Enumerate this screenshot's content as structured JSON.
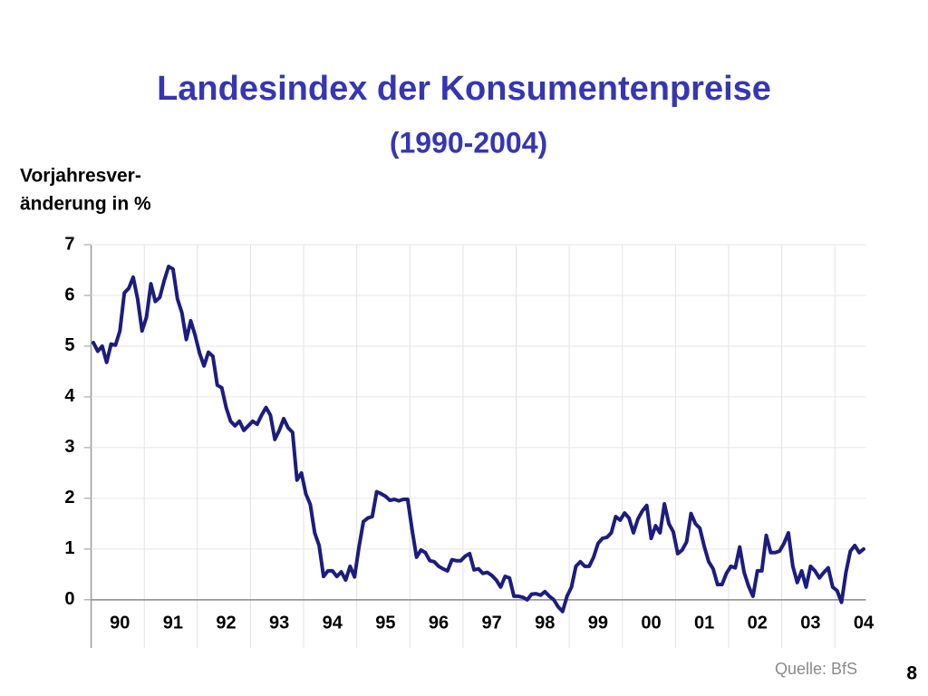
{
  "chart_data": {
    "type": "line",
    "title": "Landesindex der Konsumentenpreise",
    "subtitle": "(1990-2004)",
    "ylabel": [
      "Vorjahresver-",
      "änderung in %"
    ],
    "source": "Quelle: BfS",
    "page_number": "8",
    "categories": [
      null,
      null,
      null,
      null,
      null,
      null,
      "90",
      null,
      null,
      null,
      null,
      null,
      null,
      null,
      null,
      null,
      null,
      null,
      "91",
      null,
      null,
      null,
      null,
      null,
      null,
      null,
      null,
      null,
      null,
      null,
      "92",
      null,
      null,
      null,
      null,
      null,
      null,
      null,
      null,
      null,
      null,
      null,
      "93",
      null,
      null,
      null,
      null,
      null,
      null,
      null,
      null,
      null,
      null,
      null,
      "94",
      null,
      null,
      null,
      null,
      null,
      null,
      null,
      null,
      null,
      null,
      null,
      "95",
      null,
      null,
      null,
      null,
      null,
      null,
      null,
      null,
      null,
      null,
      null,
      "96",
      null,
      null,
      null,
      null,
      null,
      null,
      null,
      null,
      null,
      null,
      null,
      "97",
      null,
      null,
      null,
      null,
      null,
      null,
      null,
      null,
      null,
      null,
      null,
      "98",
      null,
      null,
      null,
      null,
      null,
      null,
      null,
      null,
      null,
      null,
      null,
      "99",
      null,
      null,
      null,
      null,
      null,
      null,
      null,
      null,
      null,
      null,
      null,
      "00",
      null,
      null,
      null,
      null,
      null,
      null,
      null,
      null,
      null,
      null,
      null,
      "01",
      null,
      null,
      null,
      null,
      null,
      null,
      null,
      null,
      null,
      null,
      null,
      "02",
      null,
      null,
      null,
      null,
      null,
      null,
      null,
      null,
      null,
      null,
      null,
      "03",
      null,
      null,
      null,
      null,
      null,
      null,
      null,
      null,
      null,
      null,
      null,
      "04"
    ],
    "series": [
      {
        "color": "#1c1c80",
        "values": [
          5.07,
          4.9,
          5.0,
          4.68,
          5.04,
          5.02,
          5.3,
          6.05,
          6.14,
          6.36,
          5.93,
          5.3,
          5.57,
          6.23,
          5.88,
          5.96,
          6.29,
          6.57,
          6.52,
          5.93,
          5.66,
          5.13,
          5.5,
          5.21,
          4.86,
          4.61,
          4.88,
          4.8,
          4.23,
          4.18,
          3.79,
          3.52,
          3.43,
          3.52,
          3.34,
          3.43,
          3.52,
          3.46,
          3.64,
          3.79,
          3.64,
          3.16,
          3.34,
          3.57,
          3.39,
          3.3,
          2.36,
          2.5,
          2.09,
          1.88,
          1.32,
          1.07,
          0.46,
          0.57,
          0.57,
          0.46,
          0.55,
          0.39,
          0.66,
          0.45,
          1.04,
          1.54,
          1.61,
          1.64,
          2.13,
          2.09,
          2.04,
          1.96,
          1.98,
          1.95,
          1.98,
          1.98,
          1.38,
          0.84,
          0.98,
          0.93,
          0.77,
          0.75,
          0.66,
          0.61,
          0.57,
          0.79,
          0.77,
          0.77,
          0.86,
          0.91,
          0.59,
          0.61,
          0.52,
          0.54,
          0.48,
          0.39,
          0.25,
          0.46,
          0.43,
          0.07,
          0.07,
          0.05,
          0.0,
          0.11,
          0.12,
          0.09,
          0.16,
          0.07,
          0.0,
          -0.14,
          -0.23,
          0.07,
          0.25,
          0.66,
          0.75,
          0.66,
          0.66,
          0.84,
          1.11,
          1.21,
          1.23,
          1.32,
          1.64,
          1.57,
          1.71,
          1.61,
          1.32,
          1.59,
          1.75,
          1.86,
          1.21,
          1.46,
          1.32,
          1.89,
          1.5,
          1.34,
          0.91,
          0.98,
          1.14,
          1.7,
          1.5,
          1.41,
          1.05,
          0.75,
          0.61,
          0.3,
          0.3,
          0.52,
          0.66,
          0.63,
          1.04,
          0.54,
          0.27,
          0.07,
          0.57,
          0.57,
          1.27,
          0.93,
          0.93,
          0.96,
          1.11,
          1.32,
          0.66,
          0.34,
          0.57,
          0.25,
          0.66,
          0.57,
          0.43,
          0.54,
          0.63,
          0.25,
          0.18,
          -0.05,
          0.54,
          0.96,
          1.07,
          0.93,
          1.0
        ]
      }
    ],
    "ylim": [
      -0.95,
      7
    ],
    "yticks": [
      0,
      1,
      2,
      3,
      4,
      5,
      6,
      7
    ],
    "grid": true
  }
}
